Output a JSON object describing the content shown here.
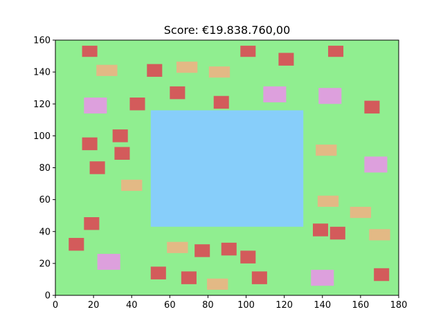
{
  "title": "Score: €19.838.760,00",
  "colors": {
    "field": "#90ee90",
    "pool": "#87cefa",
    "red": "#d35b5b",
    "tan": "#e3b985",
    "pink": "#dda0dd"
  },
  "axes": {
    "xlim": [
      0,
      180
    ],
    "ylim": [
      0,
      160
    ],
    "xticks": [
      0,
      20,
      40,
      60,
      80,
      100,
      120,
      140,
      160,
      180
    ],
    "yticks": [
      0,
      20,
      40,
      60,
      80,
      100,
      120,
      140,
      160
    ]
  },
  "pool": {
    "x0": 50,
    "x1": 130,
    "y0": 43,
    "y1": 116
  },
  "tiles": [
    {
      "x": 18,
      "y": 153,
      "w": 8,
      "h": 7,
      "kind": "red"
    },
    {
      "x": 27,
      "y": 141,
      "w": 11,
      "h": 7,
      "kind": "tan"
    },
    {
      "x": 52,
      "y": 141,
      "w": 8,
      "h": 8,
      "kind": "red"
    },
    {
      "x": 69,
      "y": 143,
      "w": 11,
      "h": 7,
      "kind": "tan"
    },
    {
      "x": 86,
      "y": 140,
      "w": 11,
      "h": 7,
      "kind": "tan"
    },
    {
      "x": 101,
      "y": 153,
      "w": 8,
      "h": 7,
      "kind": "red"
    },
    {
      "x": 121,
      "y": 148,
      "w": 8,
      "h": 8,
      "kind": "red"
    },
    {
      "x": 147,
      "y": 153,
      "w": 8,
      "h": 7,
      "kind": "red"
    },
    {
      "x": 21,
      "y": 119,
      "w": 12,
      "h": 10,
      "kind": "pink"
    },
    {
      "x": 43,
      "y": 120,
      "w": 8,
      "h": 8,
      "kind": "red"
    },
    {
      "x": 64,
      "y": 127,
      "w": 8,
      "h": 8,
      "kind": "red"
    },
    {
      "x": 87,
      "y": 121,
      "w": 8,
      "h": 8,
      "kind": "red"
    },
    {
      "x": 115,
      "y": 126,
      "w": 12,
      "h": 10,
      "kind": "pink"
    },
    {
      "x": 144,
      "y": 125,
      "w": 12,
      "h": 10,
      "kind": "pink"
    },
    {
      "x": 166,
      "y": 118,
      "w": 8,
      "h": 8,
      "kind": "red"
    },
    {
      "x": 18,
      "y": 95,
      "w": 8,
      "h": 8,
      "kind": "red"
    },
    {
      "x": 34,
      "y": 100,
      "w": 8,
      "h": 8,
      "kind": "red"
    },
    {
      "x": 35,
      "y": 89,
      "w": 8,
      "h": 8,
      "kind": "red"
    },
    {
      "x": 22,
      "y": 80,
      "w": 8,
      "h": 8,
      "kind": "red"
    },
    {
      "x": 142,
      "y": 91,
      "w": 11,
      "h": 7,
      "kind": "tan"
    },
    {
      "x": 168,
      "y": 82,
      "w": 12,
      "h": 10,
      "kind": "pink"
    },
    {
      "x": 40,
      "y": 69,
      "w": 11,
      "h": 7,
      "kind": "tan"
    },
    {
      "x": 143,
      "y": 59,
      "w": 11,
      "h": 7,
      "kind": "tan"
    },
    {
      "x": 160,
      "y": 52,
      "w": 11,
      "h": 7,
      "kind": "tan"
    },
    {
      "x": 19,
      "y": 45,
      "w": 8,
      "h": 8,
      "kind": "red"
    },
    {
      "x": 139,
      "y": 41,
      "w": 8,
      "h": 8,
      "kind": "red"
    },
    {
      "x": 148,
      "y": 39,
      "w": 8,
      "h": 8,
      "kind": "red"
    },
    {
      "x": 170,
      "y": 38,
      "w": 11,
      "h": 7,
      "kind": "tan"
    },
    {
      "x": 11,
      "y": 32,
      "w": 8,
      "h": 8,
      "kind": "red"
    },
    {
      "x": 64,
      "y": 30,
      "w": 11,
      "h": 7,
      "kind": "tan"
    },
    {
      "x": 77,
      "y": 28,
      "w": 8,
      "h": 8,
      "kind": "red"
    },
    {
      "x": 91,
      "y": 29,
      "w": 8,
      "h": 8,
      "kind": "red"
    },
    {
      "x": 101,
      "y": 24,
      "w": 8,
      "h": 8,
      "kind": "red"
    },
    {
      "x": 28,
      "y": 21,
      "w": 12,
      "h": 10,
      "kind": "pink"
    },
    {
      "x": 54,
      "y": 14,
      "w": 8,
      "h": 8,
      "kind": "red"
    },
    {
      "x": 70,
      "y": 11,
      "w": 8,
      "h": 8,
      "kind": "red"
    },
    {
      "x": 85,
      "y": 7,
      "w": 11,
      "h": 7,
      "kind": "tan"
    },
    {
      "x": 107,
      "y": 11,
      "w": 8,
      "h": 8,
      "kind": "red"
    },
    {
      "x": 140,
      "y": 11,
      "w": 12,
      "h": 10,
      "kind": "pink"
    },
    {
      "x": 171,
      "y": 13,
      "w": 8,
      "h": 8,
      "kind": "red"
    }
  ]
}
